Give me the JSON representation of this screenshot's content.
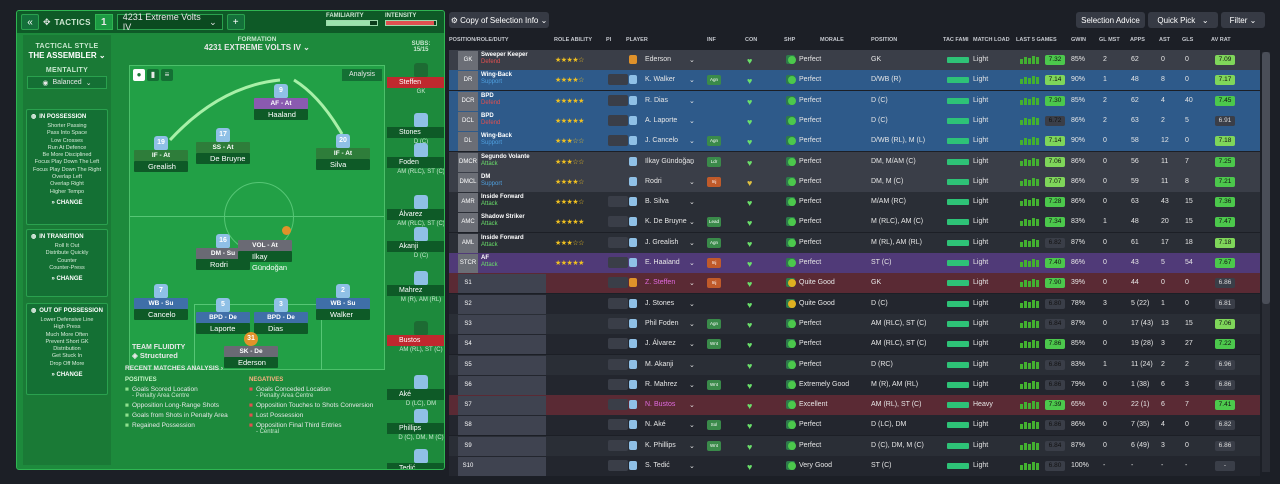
{
  "tactics": {
    "label": "TACTICS",
    "number": "1",
    "formation_select": "4231 Extreme Volts IV",
    "add": "+",
    "back": "«",
    "familiarity_label": "FAMILIARITY",
    "intensity_label": "INTENSITY",
    "familiarity_value": 0.85,
    "intensity_value": 0.95
  },
  "sidebar": {
    "style_heading": "TACTICAL STYLE",
    "style_name": "THE ASSEMBLER",
    "mentality_heading": "MENTALITY",
    "mentality_value": "Balanced",
    "in_possession": {
      "title": "IN POSSESSION",
      "items": [
        "Shorter Passing",
        "Pass Into Space",
        "Low Crosses",
        "Run At Defence",
        "Be More Disciplined",
        "Focus Play Down The Left",
        "Focus Play Down The Right",
        "Overlap Left",
        "Overlap Right",
        "Higher Tempo"
      ],
      "change": "CHANGE"
    },
    "in_transition": {
      "title": "IN TRANSITION",
      "items": [
        "Roll It Out",
        "Distribute Quickly",
        "Counter",
        "Counter-Press"
      ],
      "change": "CHANGE"
    },
    "out_of_possession": {
      "title": "OUT OF POSSESSION",
      "items": [
        "Lower Defensive Line",
        "High Press",
        "Much More Often",
        "Prevent Short GK",
        "Distribution",
        "Get Stuck In",
        "Drop Off More"
      ],
      "change": "CHANGE"
    }
  },
  "formation": {
    "heading": "FORMATION",
    "name": "4231 EXTREME VOLTS IV",
    "analysis": "Analysis",
    "subs_label": "SUBS:",
    "subs_value": "15/15",
    "players": [
      {
        "num": "9",
        "role": "AF - At",
        "name": "Haaland",
        "col": "#8a5ab0"
      },
      {
        "num": "19",
        "role": "IF - At",
        "name": "Grealish",
        "col": "#2e7d3a"
      },
      {
        "num": "17",
        "role": "SS - At",
        "name": "De Bruyne",
        "col": "#2e7d3a"
      },
      {
        "num": "20",
        "role": "IF - At",
        "name": "Silva",
        "col": "#2e7d3a"
      },
      {
        "num": "16",
        "role": "DM - Su",
        "name": "Rodri",
        "col": "#6a6a74"
      },
      {
        "num": "",
        "role": "VOL - At",
        "name": "Ilkay Gündoğan",
        "col": "#6a6a74"
      },
      {
        "num": "7",
        "role": "WB - Su",
        "name": "Cancelo",
        "col": "#3f6fa8"
      },
      {
        "num": "5",
        "role": "BPD - De",
        "name": "Laporte",
        "col": "#3f6fa8"
      },
      {
        "num": "3",
        "role": "BPD - De",
        "name": "Dias",
        "col": "#3f6fa8"
      },
      {
        "num": "2",
        "role": "WB - Su",
        "name": "Walker",
        "col": "#3f6fa8"
      },
      {
        "num": "31",
        "role": "SK - De",
        "name": "Ederson",
        "col": "#6a6a74"
      }
    ],
    "team_fluidity_label": "TEAM FLUIDITY",
    "team_fluidity_value": "Structured"
  },
  "subs": [
    {
      "name": "Steffen",
      "pos": "GK"
    },
    {
      "name": "Stones",
      "pos": "D (C)"
    },
    {
      "name": "Foden",
      "pos": "AM (RLC), ST (C)"
    },
    {
      "name": "Álvarez",
      "pos": "AM (RLC), ST (C)"
    },
    {
      "name": "Akanji",
      "pos": "D (C)"
    },
    {
      "name": "Mahrez",
      "pos": "M (R), AM (RL)"
    },
    {
      "name": "Bustos",
      "pos": "AM (RL), ST (C)"
    },
    {
      "name": "Aké",
      "pos": "D (LC), DM"
    },
    {
      "name": "Phillips",
      "pos": "D (C), DM, M (C)"
    },
    {
      "name": "Tedić",
      "pos": ""
    }
  ],
  "analysis": {
    "heading": "RECENT MATCHES ANALYSIS",
    "positives_label": "POSITIVES",
    "negatives_label": "NEGATIVES",
    "positives": [
      {
        "t": "Goals Scored Location",
        "s": "- Penalty Area Centre"
      },
      {
        "t": "Opposition Long-Range Shots",
        "s": ""
      },
      {
        "t": "Goals from Shots in Penalty Area",
        "s": ""
      },
      {
        "t": "Regained Possession",
        "s": ""
      }
    ],
    "negatives": [
      {
        "t": "Goals Conceded Location",
        "s": "- Penalty Area Centre"
      },
      {
        "t": "Opposition Touches to Shots Conversion",
        "s": ""
      },
      {
        "t": "Lost Possession",
        "s": ""
      },
      {
        "t": "Opposition Final Third Entries",
        "s": "- Central"
      }
    ]
  },
  "toolbar": {
    "copy": "Copy of Selection Info",
    "selection_advice": "Selection Advice",
    "quick_pick": "Quick Pick",
    "filter": "Filter"
  },
  "columns": [
    "POSITION/ROLE/DUTY",
    "ROLE ABILITY",
    "PI",
    "PLAYER",
    "INF",
    "CON",
    "SHP",
    "MORALE",
    "POSITION",
    "TAC FAMI",
    "MATCH LOAD",
    "LAST 5 GAMES",
    "GWIN",
    "GL MST",
    "APPS",
    "AST",
    "GLS",
    "AV RAT"
  ],
  "rows": [
    {
      "pos": "GK",
      "role": "Sweeper Keeper",
      "duty": "Defend",
      "stars": "★★★★☆",
      "player": "Ederson",
      "inf": "",
      "morale": "Perfect",
      "position": "GK",
      "load": "Light",
      "avg": "7.32",
      "gwin": "85%",
      "glmst": "2",
      "apps": "62",
      "ast": "0",
      "gls": "0",
      "avrat": "7.09",
      "rc": "#3a3e48",
      "dc": "#e05050"
    },
    {
      "pos": "DR",
      "role": "Wing-Back",
      "duty": "Support",
      "stars": "★★★★☆",
      "player": "K. Walker",
      "inf": "Agn",
      "morale": "Perfect",
      "position": "D/WB (R)",
      "load": "Light",
      "avg": "7.14",
      "gwin": "90%",
      "glmst": "1",
      "apps": "48",
      "ast": "8",
      "gls": "0",
      "avrat": "7.17",
      "rc": "#2e5a8a",
      "dc": "#4fa0e0"
    },
    {
      "pos": "DCR",
      "role": "BPD",
      "duty": "Defend",
      "stars": "★★★★★",
      "player": "R. Dias",
      "inf": "",
      "morale": "Perfect",
      "position": "D (C)",
      "load": "Light",
      "avg": "7.30",
      "gwin": "85%",
      "glmst": "2",
      "apps": "62",
      "ast": "4",
      "gls": "40",
      "avrat": "7.45",
      "rc": "#2e5a8a",
      "dc": "#e05050"
    },
    {
      "pos": "DCL",
      "role": "BPD",
      "duty": "Defend",
      "stars": "★★★★★",
      "player": "A. Laporte",
      "inf": "",
      "morale": "Perfect",
      "position": "D (C)",
      "load": "Light",
      "avg": "6.72",
      "gwin": "86%",
      "glmst": "2",
      "apps": "63",
      "ast": "2",
      "gls": "5",
      "avrat": "6.91",
      "rc": "#2e5a8a",
      "dc": "#e05050"
    },
    {
      "pos": "DL",
      "role": "Wing-Back",
      "duty": "Support",
      "stars": "★★★☆☆",
      "player": "J. Cancelo",
      "inf": "Agn",
      "morale": "Perfect",
      "position": "D/WB (RL), M (L)",
      "load": "Light",
      "avg": "7.14",
      "gwin": "90%",
      "glmst": "0",
      "apps": "58",
      "ast": "12",
      "gls": "0",
      "avrat": "7.18",
      "rc": "#2e5a8a",
      "dc": "#4fa0e0"
    },
    {
      "pos": "DMCR",
      "role": "Segundo Volante",
      "duty": "Attack",
      "stars": "★★★☆☆",
      "player": "Ilkay Gündoğan",
      "inf": "Ldr",
      "morale": "Perfect",
      "position": "DM, M/AM (C)",
      "load": "Light",
      "avg": "7.06",
      "gwin": "86%",
      "glmst": "0",
      "apps": "56",
      "ast": "11",
      "gls": "7",
      "avrat": "7.25",
      "rc": "#3a3e48",
      "dc": "#6adf6a"
    },
    {
      "pos": "DMCL",
      "role": "DM",
      "duty": "Support",
      "stars": "★★★★☆",
      "player": "Rodri",
      "inf": "Inj",
      "morale": "Perfect",
      "position": "DM, M (C)",
      "load": "Light",
      "avg": "7.07",
      "gwin": "86%",
      "glmst": "0",
      "apps": "59",
      "ast": "11",
      "gls": "8",
      "avrat": "7.21",
      "rc": "#3a3e48",
      "dc": "#4fa0e0"
    },
    {
      "pos": "AMR",
      "role": "Inside Forward",
      "duty": "Attack",
      "stars": "★★★★☆",
      "player": "B. Silva",
      "inf": "",
      "morale": "Perfect",
      "position": "M/AM (RC)",
      "load": "Light",
      "avg": "7.28",
      "gwin": "86%",
      "glmst": "0",
      "apps": "63",
      "ast": "43",
      "gls": "15",
      "avrat": "7.36",
      "rc": "#2a2e36",
      "dc": "#6adf6a"
    },
    {
      "pos": "AMC",
      "role": "Shadow Striker",
      "duty": "Attack",
      "stars": "★★★★★",
      "player": "K. De Bruyne",
      "inf": "Lead",
      "morale": "Perfect",
      "position": "M (RLC), AM (C)",
      "load": "Light",
      "avg": "7.34",
      "gwin": "83%",
      "glmst": "1",
      "apps": "48",
      "ast": "20",
      "gls": "15",
      "avrat": "7.47",
      "rc": "#2a2e36",
      "dc": "#6adf6a"
    },
    {
      "pos": "AML",
      "role": "Inside Forward",
      "duty": "Attack",
      "stars": "★★★☆☆",
      "player": "J. Grealish",
      "inf": "Agn",
      "morale": "Perfect",
      "position": "M (RL), AM (RL)",
      "load": "Light",
      "avg": "6.82",
      "gwin": "87%",
      "glmst": "0",
      "apps": "61",
      "ast": "17",
      "gls": "18",
      "avrat": "7.18",
      "rc": "#2a2e36",
      "dc": "#6adf6a"
    },
    {
      "pos": "STCR",
      "role": "AF",
      "duty": "Attack",
      "stars": "★★★★★",
      "player": "E. Haaland",
      "inf": "Inj",
      "morale": "Perfect",
      "position": "ST (C)",
      "load": "Light",
      "avg": "7.40",
      "gwin": "86%",
      "glmst": "0",
      "apps": "43",
      "ast": "5",
      "gls": "54",
      "avrat": "7.67",
      "rc": "#503a78",
      "dc": "#6adf6a"
    },
    {
      "pos": "S1",
      "role": "",
      "duty": "",
      "stars": "",
      "player": "Z. Steffen",
      "inf": "Inj",
      "morale": "Quite Good",
      "position": "GK",
      "load": "Light",
      "avg": "7.90",
      "gwin": "39%",
      "glmst": "0",
      "apps": "44",
      "ast": "0",
      "gls": "0",
      "avrat": "6.86",
      "rc": "#5a2a34",
      "dc": ""
    },
    {
      "pos": "S2",
      "role": "",
      "duty": "",
      "stars": "",
      "player": "J. Stones",
      "inf": "",
      "morale": "Quite Good",
      "position": "D (C)",
      "load": "Light",
      "avg": "6.80",
      "gwin": "78%",
      "glmst": "3",
      "apps": "5 (22)",
      "ast": "1",
      "gls": "0",
      "avrat": "6.81",
      "rc": "#23262e",
      "dc": ""
    },
    {
      "pos": "S3",
      "role": "",
      "duty": "",
      "stars": "",
      "player": "Phil Foden",
      "inf": "Agn",
      "morale": "Perfect",
      "position": "AM (RLC), ST (C)",
      "load": "Light",
      "avg": "6.84",
      "gwin": "87%",
      "glmst": "0",
      "apps": "17 (43)",
      "ast": "13",
      "gls": "15",
      "avrat": "7.06",
      "rc": "#2a2e36",
      "dc": ""
    },
    {
      "pos": "S4",
      "role": "",
      "duty": "",
      "stars": "",
      "player": "J. Álvarez",
      "inf": "Wnt",
      "morale": "Perfect",
      "position": "AM (RLC), ST (C)",
      "load": "Light",
      "avg": "7.86",
      "gwin": "85%",
      "glmst": "0",
      "apps": "19 (28)",
      "ast": "3",
      "gls": "27",
      "avrat": "7.22",
      "rc": "#23262e",
      "dc": ""
    },
    {
      "pos": "S5",
      "role": "",
      "duty": "",
      "stars": "",
      "player": "M. Akanji",
      "inf": "",
      "morale": "Perfect",
      "position": "D (RC)",
      "load": "Light",
      "avg": "6.86",
      "gwin": "83%",
      "glmst": "1",
      "apps": "11 (24)",
      "ast": "2",
      "gls": "2",
      "avrat": "6.96",
      "rc": "#2a2e36",
      "dc": ""
    },
    {
      "pos": "S6",
      "role": "",
      "duty": "",
      "stars": "",
      "player": "R. Mahrez",
      "inf": "Wnt",
      "morale": "Extremely Good",
      "position": "M (R), AM (RL)",
      "load": "Light",
      "avg": "6.86",
      "gwin": "79%",
      "glmst": "0",
      "apps": "1 (38)",
      "ast": "6",
      "gls": "3",
      "avrat": "6.86",
      "rc": "#23262e",
      "dc": ""
    },
    {
      "pos": "S7",
      "role": "",
      "duty": "",
      "stars": "",
      "player": "N. Bustos",
      "inf": "",
      "morale": "Excellent",
      "position": "AM (RL), ST (C)",
      "load": "Heavy",
      "avg": "7.39",
      "gwin": "65%",
      "glmst": "0",
      "apps": "22 (1)",
      "ast": "6",
      "gls": "7",
      "avrat": "7.41",
      "rc": "#5a2a34",
      "dc": ""
    },
    {
      "pos": "S8",
      "role": "",
      "duty": "",
      "stars": "",
      "player": "N. Aké",
      "inf": "Sol",
      "morale": "Perfect",
      "position": "D (LC), DM",
      "load": "Light",
      "avg": "6.86",
      "gwin": "86%",
      "glmst": "0",
      "apps": "7 (35)",
      "ast": "4",
      "gls": "0",
      "avrat": "6.82",
      "rc": "#23262e",
      "dc": ""
    },
    {
      "pos": "S9",
      "role": "",
      "duty": "",
      "stars": "",
      "player": "K. Phillips",
      "inf": "Wnt",
      "morale": "Perfect",
      "position": "D (C), DM, M (C)",
      "load": "Light",
      "avg": "6.84",
      "gwin": "87%",
      "glmst": "0",
      "apps": "6 (49)",
      "ast": "3",
      "gls": "0",
      "avrat": "6.86",
      "rc": "#2a2e36",
      "dc": ""
    },
    {
      "pos": "S10",
      "role": "",
      "duty": "",
      "stars": "",
      "player": "S. Tedić",
      "inf": "",
      "morale": "Very Good",
      "position": "ST (C)",
      "load": "Light",
      "avg": "6.80",
      "gwin": "100%",
      "glmst": "-",
      "apps": "-",
      "ast": "-",
      "gls": "-",
      "avrat": "-",
      "rc": "#23262e",
      "dc": ""
    }
  ]
}
